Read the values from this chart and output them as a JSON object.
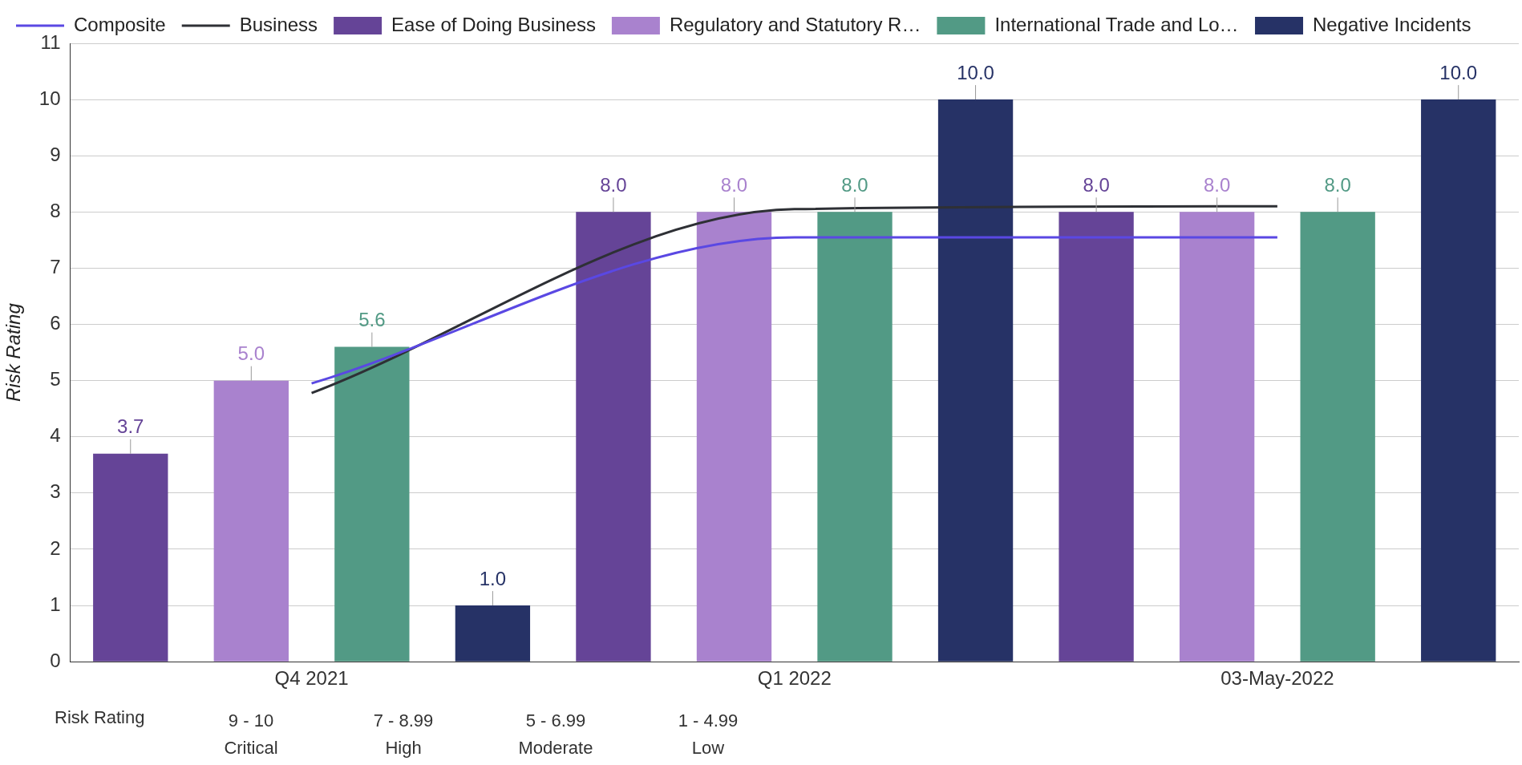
{
  "chart_data": {
    "type": "bar",
    "ylabel": "Risk Rating",
    "categories": [
      "Q4 2021",
      "Q1 2022",
      "03-May-2022"
    ],
    "series": [
      {
        "name": "Composite",
        "type": "line",
        "color": "#5a48e3",
        "values": [
          4.95,
          7.55,
          7.55
        ]
      },
      {
        "name": "Business",
        "type": "line",
        "color": "#2e3035",
        "values": [
          4.78,
          8.05,
          8.1
        ]
      },
      {
        "name": "Ease of Doing Business",
        "color": "#654497",
        "values": [
          3.7,
          8.0,
          8.0
        ],
        "value_labels": [
          "3.7",
          "8.0",
          "8.0"
        ]
      },
      {
        "name": "Regulatory and Statutory R…",
        "color": "#a982ce",
        "values": [
          5.0,
          8.0,
          8.0
        ],
        "value_labels": [
          "5.0",
          "8.0",
          "8.0"
        ]
      },
      {
        "name": "International Trade and Lo…",
        "color": "#529a85",
        "values": [
          5.6,
          8.0,
          8.0
        ],
        "value_labels": [
          "5.6",
          "8.0",
          "8.0"
        ]
      },
      {
        "name": "Negative Incidents",
        "color": "#263266",
        "values": [
          1.0,
          10.0,
          10.0
        ],
        "value_labels": [
          "1.0",
          "10.0",
          "10.0"
        ]
      }
    ],
    "ylim": [
      0,
      11
    ],
    "yticks": [
      0,
      1,
      2,
      3,
      4,
      5,
      6,
      7,
      8,
      9,
      10,
      11
    ],
    "grid": "y",
    "legend": "top left",
    "annotations": [
      "Risk Rating",
      "9 - 10",
      "Critical",
      "7 - 8.99",
      "High",
      "5 - 6.99",
      "Moderate",
      "1 - 4.99",
      "Low"
    ]
  }
}
